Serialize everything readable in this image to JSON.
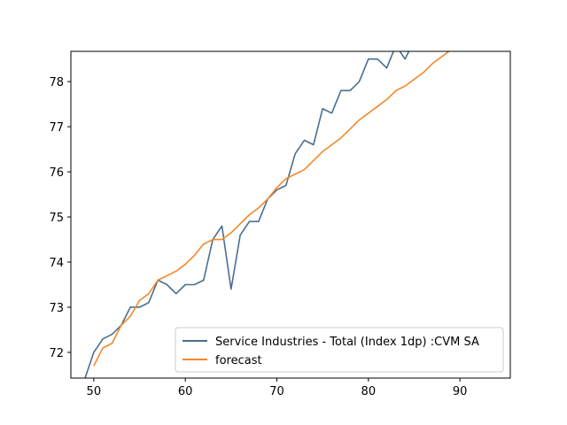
{
  "chart_data": {
    "type": "line",
    "title": "",
    "xlabel": "",
    "ylabel": "",
    "xlim": [
      47.5,
      95.5
    ],
    "ylim": [
      71.43,
      78.67
    ],
    "xticks": [
      50,
      60,
      70,
      80,
      90
    ],
    "yticks": [
      72,
      73,
      74,
      75,
      76,
      77,
      78
    ],
    "grid": false,
    "legend": {
      "placement": "lower-right"
    },
    "series": [
      {
        "name": "Service Industries - Total (Index 1dp) :CVM SA",
        "color": "#4a6f8f",
        "x": [
          49,
          50,
          51,
          52,
          53,
          54,
          55,
          56,
          57,
          58,
          59,
          60,
          61,
          62,
          63,
          64,
          65,
          66,
          67,
          68,
          69,
          70,
          71,
          72,
          73,
          74,
          75,
          76,
          77,
          78,
          79,
          80,
          81,
          82,
          83,
          84,
          85
        ],
        "y": [
          71.4,
          72.0,
          72.3,
          72.4,
          72.6,
          73.0,
          73.0,
          73.1,
          73.6,
          73.5,
          73.3,
          73.5,
          73.5,
          73.6,
          74.5,
          74.8,
          73.4,
          74.6,
          74.9,
          74.9,
          75.4,
          75.6,
          75.7,
          76.4,
          76.7,
          76.6,
          77.4,
          77.3,
          77.8,
          77.8,
          78.0,
          78.5,
          78.5,
          78.3,
          78.8,
          78.5,
          78.9
        ]
      },
      {
        "name": "forecast",
        "color": "#f5882a",
        "x": [
          50,
          51,
          52,
          53,
          54,
          55,
          56,
          57,
          58,
          59,
          60,
          61,
          62,
          63,
          64,
          65,
          66,
          67,
          68,
          69,
          70,
          71,
          72,
          73,
          74,
          75,
          76,
          77,
          78,
          79,
          80,
          81,
          82,
          83,
          84,
          85,
          86,
          87,
          88,
          89
        ],
        "y": [
          71.7,
          72.1,
          72.2,
          72.6,
          72.8,
          73.15,
          73.3,
          73.6,
          73.7,
          73.8,
          73.95,
          74.15,
          74.4,
          74.5,
          74.5,
          74.65,
          74.85,
          75.05,
          75.2,
          75.4,
          75.65,
          75.85,
          75.95,
          76.05,
          76.25,
          76.45,
          76.6,
          76.75,
          76.95,
          77.15,
          77.3,
          77.45,
          77.6,
          77.8,
          77.9,
          78.05,
          78.2,
          78.4,
          78.55,
          78.7
        ]
      }
    ]
  }
}
